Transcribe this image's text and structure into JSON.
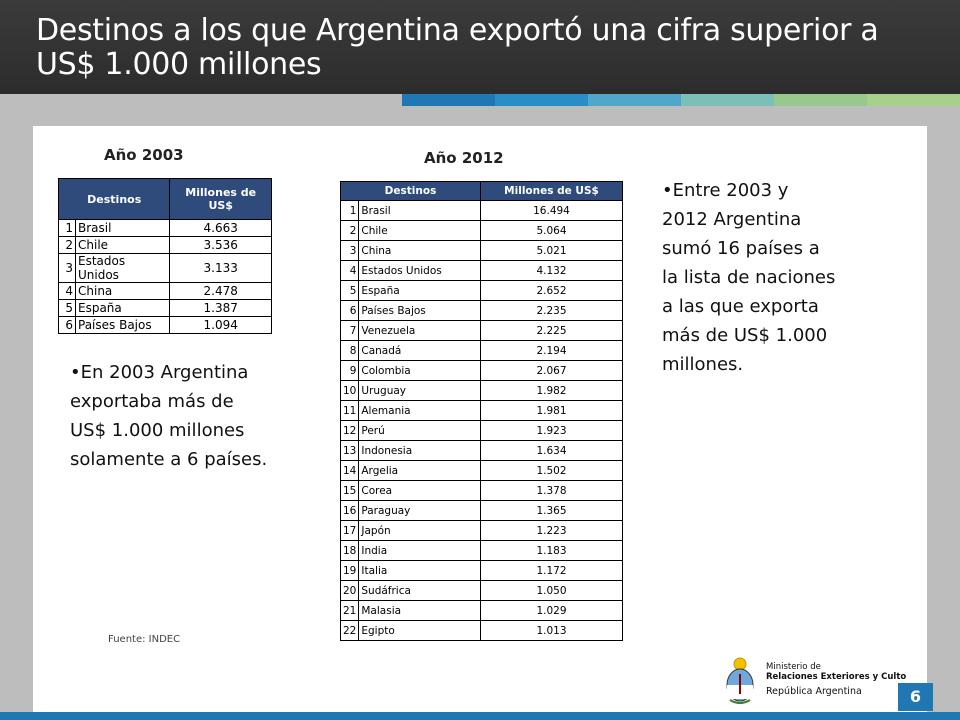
{
  "title": "Destinos a los que Argentina exportó una cifra superior a US$ 1.000 millones",
  "stripe_colors": [
    "#1f77b4",
    "#2a8ec6",
    "#4fa8c9",
    "#7bbfb8",
    "#98c98c",
    "#a7d08a"
  ],
  "y2003": {
    "label": "Año 2003",
    "headers": {
      "dest": "Destinos",
      "val": "Millones de US$"
    },
    "rows": [
      {
        "n": "1",
        "d": "Brasil",
        "v": "4.663"
      },
      {
        "n": "2",
        "d": "Chile",
        "v": "3.536"
      },
      {
        "n": "3",
        "d": "Estados Unidos",
        "v": "3.133"
      },
      {
        "n": "4",
        "d": "China",
        "v": "2.478"
      },
      {
        "n": "5",
        "d": "España",
        "v": "1.387"
      },
      {
        "n": "6",
        "d": "Países Bajos",
        "v": "1.094"
      }
    ]
  },
  "y2012": {
    "label": "Año 2012",
    "headers": {
      "dest": "Destinos",
      "val": "Millones de US$"
    },
    "rows": [
      {
        "n": "1",
        "d": "Brasil",
        "v": "16.494"
      },
      {
        "n": "2",
        "d": "Chile",
        "v": "5.064"
      },
      {
        "n": "3",
        "d": "China",
        "v": "5.021"
      },
      {
        "n": "4",
        "d": "Estados Unidos",
        "v": "4.132"
      },
      {
        "n": "5",
        "d": "España",
        "v": "2.652"
      },
      {
        "n": "6",
        "d": "Países Bajos",
        "v": "2.235"
      },
      {
        "n": "7",
        "d": "Venezuela",
        "v": "2.225"
      },
      {
        "n": "8",
        "d": "Canadá",
        "v": "2.194"
      },
      {
        "n": "9",
        "d": "Colombia",
        "v": "2.067"
      },
      {
        "n": "10",
        "d": "Uruguay",
        "v": "1.982"
      },
      {
        "n": "11",
        "d": "Alemania",
        "v": "1.981"
      },
      {
        "n": "12",
        "d": "Perú",
        "v": "1.923"
      },
      {
        "n": "13",
        "d": "Indonesia",
        "v": "1.634"
      },
      {
        "n": "14",
        "d": "Argelia",
        "v": "1.502"
      },
      {
        "n": "15",
        "d": "Corea",
        "v": "1.378"
      },
      {
        "n": "16",
        "d": "Paraguay",
        "v": "1.365"
      },
      {
        "n": "17",
        "d": "Japón",
        "v": "1.223"
      },
      {
        "n": "18",
        "d": "India",
        "v": "1.183"
      },
      {
        "n": "19",
        "d": "Italia",
        "v": "1.172"
      },
      {
        "n": "20",
        "d": "Sudáfrica",
        "v": "1.050"
      },
      {
        "n": "21",
        "d": "Malasia",
        "v": "1.029"
      },
      {
        "n": "22",
        "d": "Egipto",
        "v": "1.013"
      }
    ]
  },
  "bullet_left": "•En 2003 Argentina exportaba más de US$ 1.000 millones solamente a 6 países.",
  "bullet_right": "•Entre 2003 y 2012 Argentina sumó 16 países a la lista de naciones a las que exporta más de US$ 1.000 millones.",
  "source": "Fuente: INDEC",
  "page_number": "6",
  "logo": {
    "line1": "Ministerio de",
    "line2": "Relaciones Exteriores y Culto",
    "line3": "República Argentina"
  }
}
